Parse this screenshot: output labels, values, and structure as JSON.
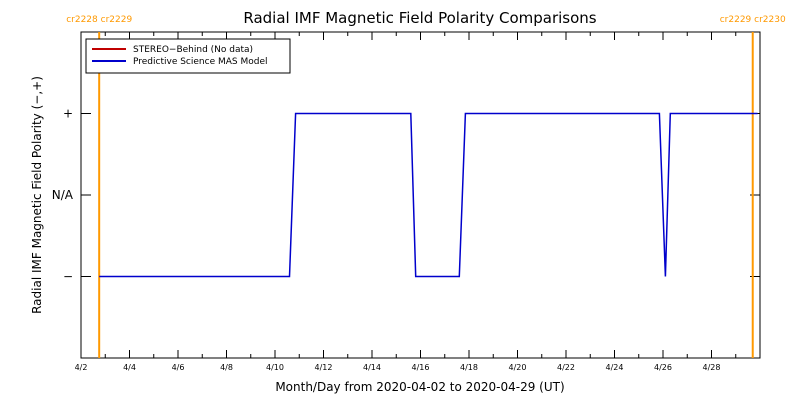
{
  "chart_data": {
    "type": "line",
    "title": "Radial IMF Magnetic Field Polarity Comparisons",
    "xlabel": "Month/Day from 2020-04-02 to 2020-04-29 (UT)",
    "ylabel": "Radial IMF Magnetic Field Polarity (−,+)",
    "x_start": "2020-04-02",
    "x_end": "2020-04-30",
    "xlim_days": [
      0,
      28
    ],
    "x_tick_labels": [
      "4/2",
      "4/4",
      "4/6",
      "4/8",
      "4/10",
      "4/12",
      "4/14",
      "4/16",
      "4/18",
      "4/20",
      "4/22",
      "4/24",
      "4/26",
      "4/28"
    ],
    "x_tick_days": [
      0,
      2,
      4,
      6,
      8,
      10,
      12,
      14,
      16,
      18,
      20,
      22,
      24,
      26
    ],
    "y_levels": {
      "+": 1,
      "N/A": 0,
      "−": -1
    },
    "y_tick_labels": [
      "+",
      "N/A",
      "−"
    ],
    "ylim": [
      -2,
      2
    ],
    "legend": {
      "position": "top-left",
      "entries": [
        {
          "name": "STEREO−Behind (No data)",
          "color": "#c00000"
        },
        {
          "name": "Predictive Science MAS Model",
          "color": "#0000cc"
        }
      ]
    },
    "series": [
      {
        "name": "Predictive Science MAS Model",
        "color": "#0000cc",
        "x_days": [
          0.75,
          8.6,
          8.85,
          13.6,
          13.8,
          15.6,
          15.85,
          23.85,
          24.1,
          24.3,
          24.55,
          27.9
        ],
        "y": [
          -1,
          -1,
          1,
          1,
          -1,
          -1,
          1,
          1,
          -1,
          1,
          1,
          1
        ]
      }
    ],
    "carrington_markers": [
      {
        "x_day": 0.75,
        "label_left": "cr2228",
        "label_right": "cr2229",
        "color": "#ff9900"
      },
      {
        "x_day": 27.7,
        "label_left": "cr2229",
        "label_right": "cr2230",
        "color": "#ff9900"
      }
    ]
  }
}
